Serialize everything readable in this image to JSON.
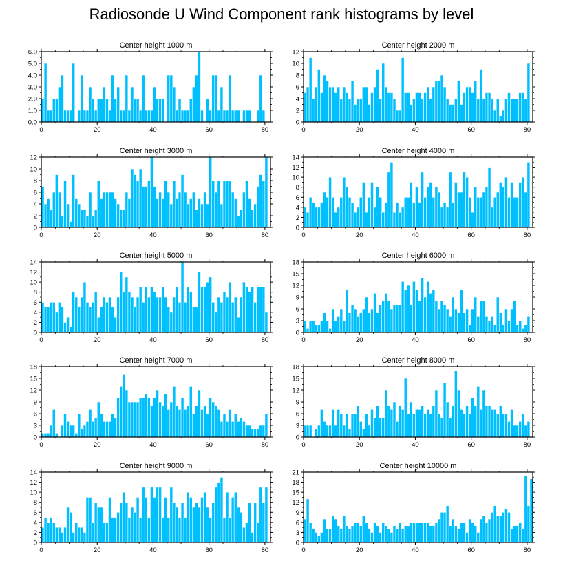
{
  "title": "Radiosonde U Wind Component rank histograms by level",
  "colors": {
    "bar": "#00BFFF",
    "bar_edge": "#ffffff",
    "axis": "#000000"
  },
  "chart_data": [
    {
      "type": "bar",
      "title": "Center height 1000 m",
      "xlim": [
        0,
        82
      ],
      "xticks": [
        0,
        20,
        40,
        60,
        80
      ],
      "ylim": [
        0,
        6
      ],
      "yticks": [
        "0.0",
        "1.0",
        "2.0",
        "3.0",
        "4.0",
        "5.0",
        "6.0"
      ],
      "values": [
        2,
        5,
        1,
        1,
        2,
        2,
        3,
        4,
        1,
        1,
        1,
        5,
        0,
        1,
        4,
        1,
        1,
        3,
        2,
        1,
        2,
        2,
        3,
        2,
        1,
        4,
        2,
        3,
        1,
        1,
        4,
        1,
        3,
        2,
        2,
        1,
        4,
        1,
        1,
        1,
        3,
        2,
        2,
        2,
        0,
        4,
        4,
        3,
        1,
        2,
        1,
        1,
        1,
        2,
        3,
        4,
        6,
        1,
        0,
        2,
        1,
        4,
        4,
        1,
        3,
        1,
        1,
        4,
        1,
        1,
        1,
        0,
        1,
        1,
        1,
        0,
        0,
        1,
        4,
        1,
        0
      ]
    },
    {
      "type": "bar",
      "title": "Center height 2000 m",
      "xlim": [
        0,
        82
      ],
      "xticks": [
        0,
        20,
        40,
        60,
        80
      ],
      "ylim": [
        0,
        12
      ],
      "yticks": [
        "0",
        "2",
        "4",
        "6",
        "8",
        "10",
        "12"
      ],
      "values": [
        5,
        6,
        11,
        4,
        6,
        9,
        5,
        8,
        7,
        6,
        6,
        5,
        6,
        4,
        6,
        5,
        4,
        7,
        3,
        4,
        4,
        6,
        6,
        3,
        5,
        6,
        9,
        4,
        10,
        6,
        5,
        5,
        4,
        2,
        2,
        11,
        5,
        5,
        3,
        4,
        5,
        5,
        4,
        5,
        6,
        4,
        6,
        7,
        7,
        8,
        6,
        4,
        3,
        3,
        4,
        7,
        3,
        5,
        6,
        6,
        5,
        7,
        4,
        9,
        4,
        5,
        5,
        4,
        2,
        4,
        1,
        2,
        4,
        5,
        4,
        4,
        4,
        5,
        5,
        4,
        10
      ]
    },
    {
      "type": "bar",
      "title": "Center height 3000 m",
      "xlim": [
        0,
        82
      ],
      "xticks": [
        0,
        20,
        40,
        60,
        80
      ],
      "ylim": [
        0,
        12
      ],
      "yticks": [
        "0",
        "2",
        "4",
        "6",
        "8",
        "10",
        "12"
      ],
      "values": [
        7,
        4,
        5,
        3,
        6,
        9,
        6,
        2,
        8,
        4,
        1,
        9,
        5,
        4,
        3,
        3,
        2,
        6,
        2,
        3,
        8,
        5,
        6,
        6,
        6,
        6,
        5,
        4,
        3,
        3,
        6,
        5,
        10,
        9,
        8,
        10,
        7,
        7,
        8,
        12,
        7,
        5,
        6,
        5,
        8,
        6,
        4,
        8,
        5,
        6,
        9,
        6,
        4,
        5,
        6,
        3,
        5,
        4,
        6,
        4,
        12,
        8,
        6,
        8,
        4,
        8,
        8,
        8,
        6,
        5,
        2,
        3,
        6,
        8,
        5,
        3,
        4,
        7,
        9,
        8,
        12
      ]
    },
    {
      "type": "bar",
      "title": "Center height 4000 m",
      "xlim": [
        0,
        82
      ],
      "xticks": [
        0,
        20,
        40,
        60,
        80
      ],
      "ylim": [
        0,
        14
      ],
      "yticks": [
        "0",
        "2",
        "4",
        "6",
        "8",
        "10",
        "12",
        "14"
      ],
      "values": [
        4,
        3,
        6,
        5,
        4,
        4,
        5,
        7,
        6,
        10,
        6,
        3,
        4,
        6,
        10,
        8,
        6,
        5,
        3,
        4,
        6,
        9,
        3,
        6,
        9,
        4,
        8,
        6,
        3,
        5,
        11,
        13,
        3,
        5,
        3,
        4,
        6,
        6,
        9,
        5,
        8,
        5,
        11,
        6,
        8,
        9,
        6,
        8,
        7,
        4,
        5,
        4,
        11,
        5,
        9,
        7,
        7,
        11,
        10,
        6,
        3,
        8,
        6,
        6,
        7,
        8,
        12,
        4,
        6,
        7,
        9,
        8,
        10,
        6,
        9,
        6,
        6,
        9,
        10,
        7,
        13
      ]
    },
    {
      "type": "bar",
      "title": "Center height 5000 m",
      "xlim": [
        0,
        82
      ],
      "xticks": [
        0,
        20,
        40,
        60,
        80
      ],
      "ylim": [
        0,
        14
      ],
      "yticks": [
        "0",
        "2",
        "4",
        "6",
        "8",
        "10",
        "12",
        "14"
      ],
      "values": [
        6,
        5,
        5,
        6,
        6,
        4,
        6,
        5,
        2,
        3,
        1,
        8,
        7,
        5,
        7,
        10,
        6,
        5,
        6,
        8,
        3,
        5,
        7,
        6,
        7,
        5,
        3,
        7,
        12,
        8,
        11,
        8,
        7,
        5,
        7,
        9,
        6,
        9,
        7,
        9,
        8,
        7,
        7,
        9,
        7,
        5,
        4,
        7,
        9,
        6,
        14,
        6,
        9,
        8,
        5,
        5,
        12,
        9,
        9,
        10,
        11,
        6,
        4,
        7,
        6,
        8,
        7,
        10,
        6,
        7,
        3,
        7,
        10,
        9,
        8,
        9,
        6,
        9,
        9,
        9,
        4
      ]
    },
    {
      "type": "bar",
      "title": "Center height 6000 m",
      "xlim": [
        0,
        82
      ],
      "xticks": [
        0,
        20,
        40,
        60,
        80
      ],
      "ylim": [
        0,
        18
      ],
      "yticks": [
        "0",
        "3",
        "6",
        "9",
        "12",
        "15",
        "18"
      ],
      "values": [
        3,
        1,
        3,
        3,
        2,
        2,
        3,
        5,
        3,
        1,
        6,
        3,
        4,
        6,
        3,
        11,
        5,
        7,
        6,
        4,
        5,
        6,
        9,
        5,
        6,
        10,
        5,
        7,
        8,
        10,
        8,
        6,
        7,
        7,
        7,
        13,
        11,
        12,
        7,
        13,
        11,
        8,
        14,
        9,
        13,
        10,
        11,
        8,
        6,
        8,
        7,
        6,
        4,
        9,
        6,
        5,
        11,
        5,
        6,
        2,
        6,
        9,
        4,
        8,
        8,
        4,
        3,
        4,
        2,
        9,
        5,
        2,
        6,
        3,
        6,
        8,
        2,
        3,
        1,
        2,
        4
      ]
    },
    {
      "type": "bar",
      "title": "Center height 7000 m",
      "xlim": [
        0,
        82
      ],
      "xticks": [
        0,
        20,
        40,
        60,
        80
      ],
      "ylim": [
        0,
        18
      ],
      "yticks": [
        "0",
        "3",
        "6",
        "9",
        "12",
        "15",
        "18"
      ],
      "values": [
        1,
        1,
        1,
        3,
        7,
        1,
        0,
        3,
        6,
        4,
        3,
        3,
        1,
        6,
        2,
        3,
        4,
        7,
        4,
        5,
        9,
        6,
        4,
        4,
        4,
        6,
        5,
        10,
        13,
        16,
        12,
        9,
        9,
        9,
        9,
        10,
        10,
        11,
        10,
        8,
        10,
        12,
        9,
        8,
        11,
        7,
        9,
        13,
        8,
        7,
        10,
        7,
        8,
        13,
        6,
        8,
        12,
        7,
        8,
        6,
        10,
        9,
        8,
        7,
        4,
        6,
        4,
        7,
        4,
        6,
        4,
        5,
        4,
        3,
        3,
        2,
        2,
        2,
        3,
        3,
        6
      ]
    },
    {
      "type": "bar",
      "title": "Center height 8000 m",
      "xlim": [
        0,
        82
      ],
      "xticks": [
        0,
        20,
        40,
        60,
        80
      ],
      "ylim": [
        0,
        18
      ],
      "yticks": [
        "0",
        "3",
        "6",
        "9",
        "12",
        "15",
        "18"
      ],
      "values": [
        3,
        3,
        3,
        0,
        2,
        3,
        7,
        4,
        3,
        3,
        7,
        3,
        7,
        6,
        3,
        6,
        2,
        6,
        6,
        8,
        4,
        2,
        6,
        3,
        7,
        5,
        8,
        5,
        5,
        12,
        8,
        7,
        9,
        4,
        8,
        7,
        15,
        6,
        9,
        6,
        7,
        7,
        8,
        6,
        7,
        6,
        8,
        12,
        6,
        5,
        14,
        9,
        5,
        8,
        17,
        12,
        7,
        6,
        8,
        6,
        10,
        8,
        13,
        7,
        12,
        8,
        8,
        7,
        7,
        6,
        8,
        6,
        6,
        4,
        7,
        3,
        3,
        4,
        6,
        3,
        4
      ]
    },
    {
      "type": "bar",
      "title": "Center height 9000 m",
      "xlim": [
        0,
        82
      ],
      "xticks": [
        0,
        20,
        40,
        60,
        80
      ],
      "ylim": [
        0,
        14
      ],
      "yticks": [
        "0",
        "2",
        "4",
        "6",
        "8",
        "10",
        "12",
        "14"
      ],
      "values": [
        3,
        5,
        4,
        5,
        4,
        3,
        3,
        2,
        3,
        7,
        6,
        2,
        4,
        3,
        3,
        2,
        9,
        9,
        4,
        8,
        7,
        7,
        4,
        4,
        9,
        5,
        5,
        6,
        8,
        10,
        8,
        5,
        7,
        6,
        9,
        5,
        11,
        9,
        5,
        11,
        9,
        11,
        11,
        5,
        9,
        5,
        11,
        8,
        7,
        5,
        8,
        5,
        10,
        9,
        7,
        8,
        7,
        9,
        10,
        7,
        5,
        8,
        11,
        12,
        13,
        5,
        10,
        5,
        9,
        10,
        7,
        6,
        3,
        4,
        8,
        2,
        8,
        4,
        11,
        8,
        11
      ]
    },
    {
      "type": "bar",
      "title": "Center height 10000 m",
      "xlim": [
        0,
        82
      ],
      "xticks": [
        0,
        20,
        40,
        60,
        80
      ],
      "ylim": [
        0,
        21
      ],
      "yticks": [
        "0",
        "3",
        "6",
        "9",
        "12",
        "15",
        "18",
        "21"
      ],
      "values": [
        7,
        13,
        6,
        4,
        3,
        2,
        3,
        7,
        4,
        4,
        8,
        7,
        5,
        4,
        8,
        5,
        4,
        5,
        6,
        6,
        5,
        8,
        6,
        4,
        3,
        6,
        5,
        3,
        6,
        5,
        4,
        3,
        5,
        4,
        6,
        4,
        5,
        5,
        6,
        6,
        6,
        6,
        6,
        6,
        6,
        5,
        5,
        6,
        7,
        9,
        9,
        11,
        5,
        7,
        5,
        4,
        6,
        6,
        3,
        7,
        6,
        5,
        3,
        7,
        8,
        6,
        7,
        9,
        11,
        8,
        8,
        9,
        10,
        9,
        4,
        5,
        5,
        6,
        4,
        20,
        11,
        19
      ]
    }
  ]
}
